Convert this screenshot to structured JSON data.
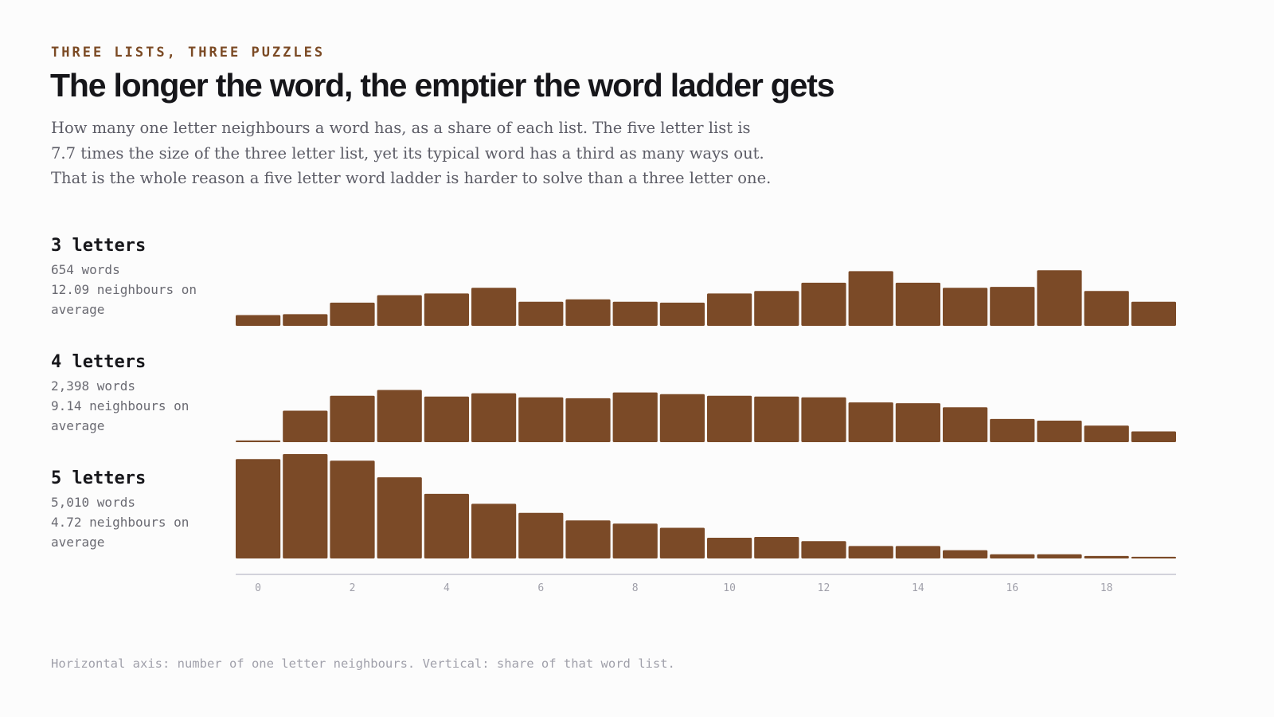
{
  "header": {
    "kicker": "THREE LISTS, THREE PUZZLES",
    "title": "The longer the word, the emptier the word ladder gets",
    "subtitle": "How many one letter neighbours a word has, as a share of each list. The five letter list is 7.7 times the size of the three letter list, yet its typical word has a third as many ways out. That is the whole reason a five letter word ladder is harder to solve than a three letter one."
  },
  "footnote": "Horizontal axis: number of one letter neighbours. Vertical: share of that word list.",
  "colors": {
    "bar": "#7b4a27",
    "axis": "#c4c4d0"
  },
  "chart_data": {
    "type": "bar",
    "categories": [
      0,
      1,
      2,
      3,
      4,
      5,
      6,
      7,
      8,
      9,
      10,
      11,
      12,
      13,
      14,
      15,
      16,
      17,
      18,
      19
    ],
    "x_ticks": [
      0,
      2,
      4,
      6,
      8,
      10,
      12,
      14,
      16,
      18
    ],
    "xlabel": "number of one letter neighbours",
    "ylabel": "share of that word list",
    "grid": false,
    "shared_x_axis": true,
    "ylim": [
      0,
      12
    ],
    "panels": [
      {
        "name": "3 letters",
        "words": "654 words",
        "avg": "12.09 neighbours on average",
        "values": [
          1.3,
          1.4,
          2.8,
          3.7,
          3.9,
          4.6,
          2.9,
          3.2,
          2.9,
          2.8,
          3.9,
          4.2,
          5.2,
          6.6,
          5.2,
          4.6,
          4.7,
          6.7,
          4.2,
          2.9
        ]
      },
      {
        "name": "4 letters",
        "words": "2,398 words",
        "avg": "9.14 neighbours on average",
        "values": [
          0.2,
          3.8,
          5.6,
          6.3,
          5.5,
          5.9,
          5.4,
          5.3,
          6.0,
          5.8,
          5.6,
          5.5,
          5.4,
          4.8,
          4.7,
          4.2,
          2.8,
          2.6,
          2.0,
          1.3
        ]
      },
      {
        "name": "5 letters",
        "words": "5,010 words",
        "avg": "4.72 neighbours on average",
        "values": [
          12.0,
          12.6,
          11.8,
          9.8,
          7.8,
          6.6,
          5.5,
          4.6,
          4.2,
          3.7,
          2.5,
          2.6,
          2.1,
          1.5,
          1.5,
          1.0,
          0.5,
          0.5,
          0.3,
          0.2
        ]
      }
    ]
  }
}
